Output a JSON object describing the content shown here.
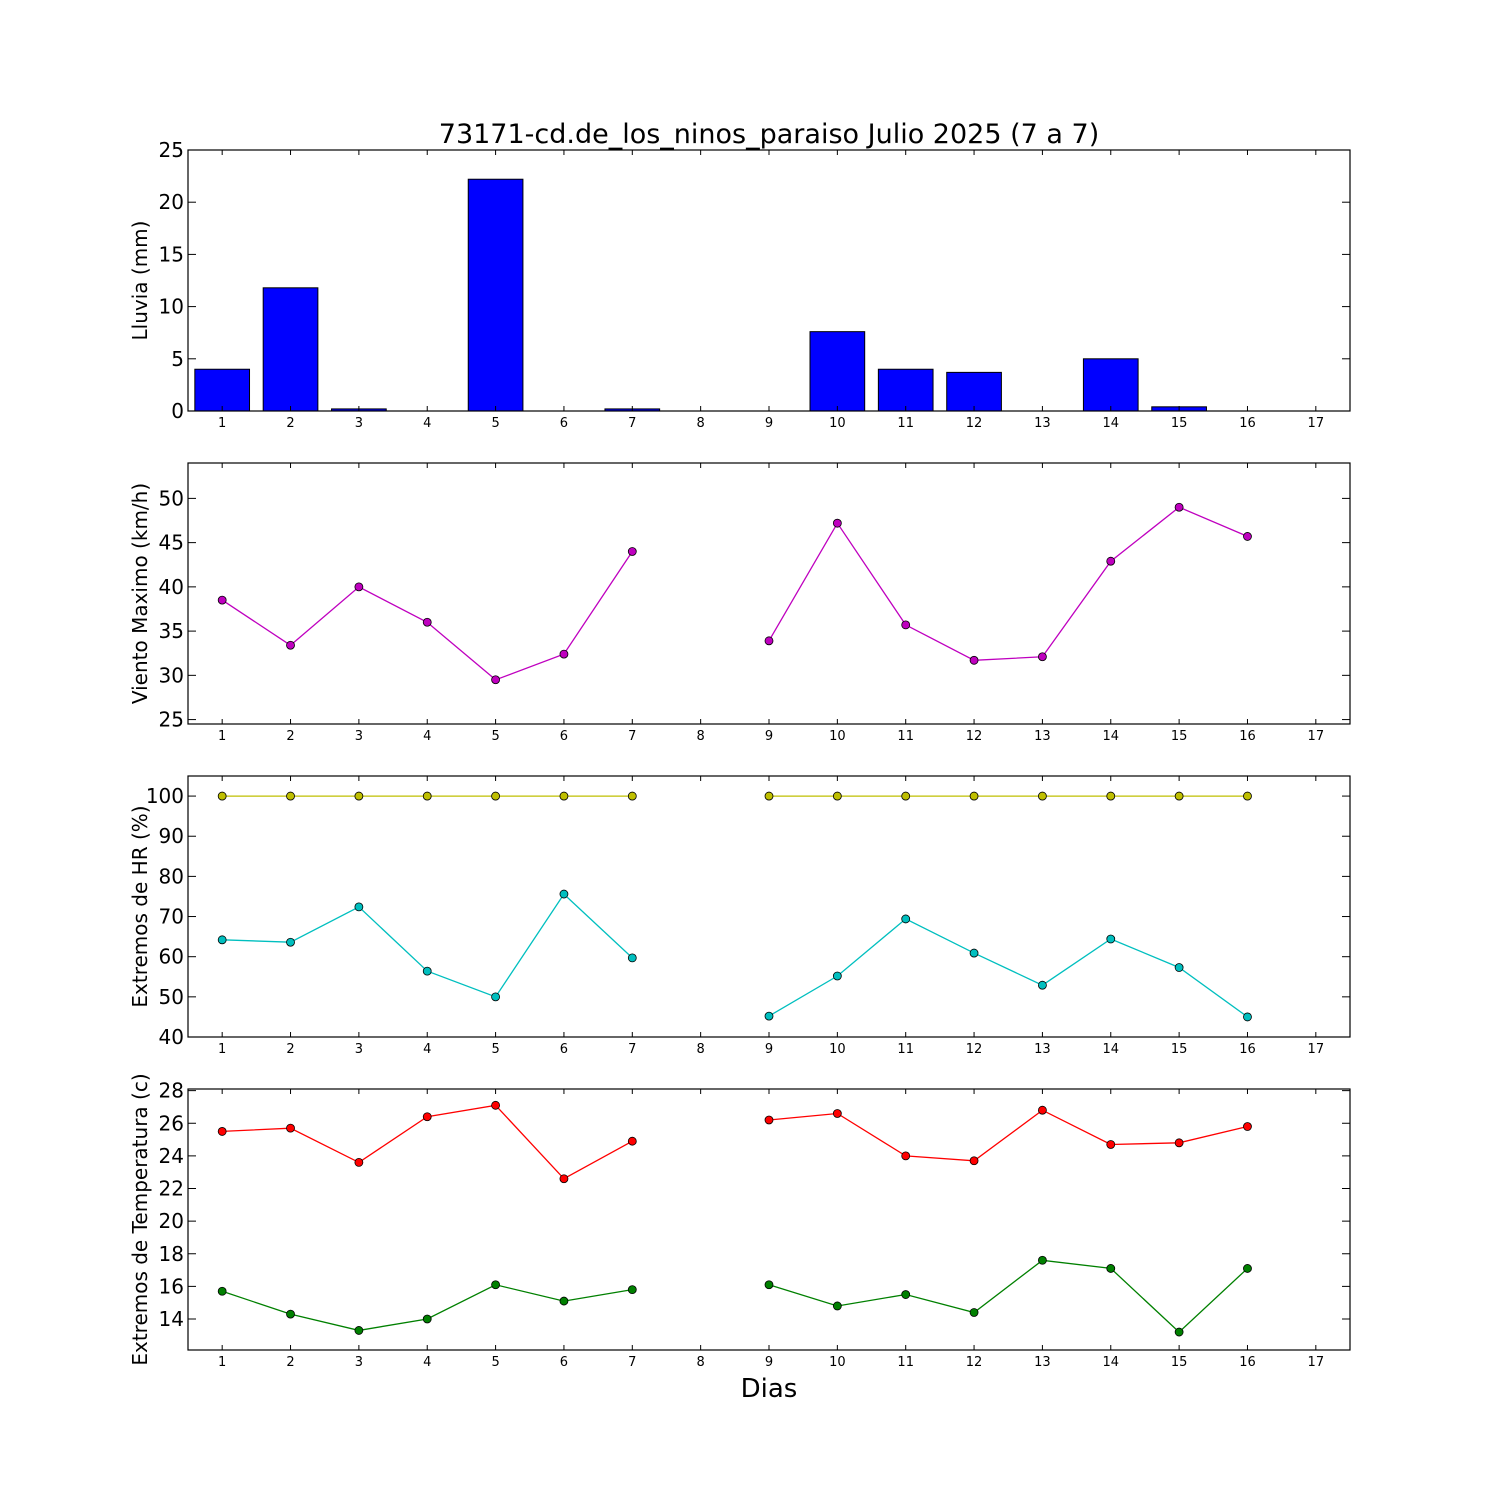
{
  "figure": {
    "title": "73171-cd.de_los_ninos_paraiso Julio 2025  (7 a 7)",
    "xlabel": "Dias"
  },
  "chart_data": [
    {
      "type": "bar",
      "ylabel": "Lluvia (mm)",
      "categories": [
        1,
        2,
        3,
        4,
        5,
        6,
        7,
        8,
        9,
        10,
        11,
        12,
        13,
        14,
        15,
        16,
        17
      ],
      "xlim": [
        0.5,
        17.5
      ],
      "ylim": [
        0,
        25
      ],
      "yticks": [
        0,
        5,
        10,
        15,
        20,
        25
      ],
      "grid": false,
      "series": [
        {
          "color": "#0000ff",
          "values": [
            4.0,
            11.8,
            0.2,
            0.0,
            22.2,
            0.0,
            0.2,
            null,
            0.0,
            7.6,
            4.0,
            3.7,
            0.0,
            5.0,
            0.4,
            0.0,
            null
          ]
        }
      ]
    },
    {
      "type": "line",
      "ylabel": "Viento Maximo (km/h)",
      "x": [
        1,
        2,
        3,
        4,
        5,
        6,
        7,
        8,
        9,
        10,
        11,
        12,
        13,
        14,
        15,
        16,
        17
      ],
      "xlim": [
        0.5,
        17.5
      ],
      "ylim": [
        24.5,
        54
      ],
      "yticks": [
        25,
        30,
        35,
        40,
        45,
        50
      ],
      "grid": false,
      "series": [
        {
          "color": "#bf00bf",
          "values": [
            38.5,
            33.4,
            40.0,
            36.0,
            29.5,
            32.4,
            44.0,
            null,
            33.9,
            47.2,
            35.7,
            31.7,
            32.1,
            42.9,
            49.0,
            45.7,
            null
          ]
        }
      ]
    },
    {
      "type": "line",
      "ylabel": "Extremos de HR (%)",
      "x": [
        1,
        2,
        3,
        4,
        5,
        6,
        7,
        8,
        9,
        10,
        11,
        12,
        13,
        14,
        15,
        16,
        17
      ],
      "xlim": [
        0.5,
        17.5
      ],
      "ylim": [
        40,
        105
      ],
      "yticks": [
        40,
        50,
        60,
        70,
        80,
        90,
        100
      ],
      "grid": false,
      "series": [
        {
          "color": "#bfbf00",
          "values": [
            100,
            100,
            100,
            100,
            100,
            100,
            100,
            null,
            100,
            100,
            100,
            100,
            100,
            100,
            100,
            100,
            null
          ]
        },
        {
          "color": "#00bfbf",
          "values": [
            64.2,
            63.6,
            72.4,
            56.4,
            50.0,
            75.6,
            59.7,
            null,
            45.2,
            55.2,
            69.4,
            60.9,
            52.9,
            64.4,
            57.3,
            45.0,
            null
          ]
        }
      ]
    },
    {
      "type": "line",
      "ylabel": "Extremos de Temperatura (c)",
      "x": [
        1,
        2,
        3,
        4,
        5,
        6,
        7,
        8,
        9,
        10,
        11,
        12,
        13,
        14,
        15,
        16,
        17
      ],
      "xlim": [
        0.5,
        17.5
      ],
      "ylim": [
        12.1,
        28.1
      ],
      "yticks": [
        14,
        16,
        18,
        20,
        22,
        24,
        26,
        28
      ],
      "grid": false,
      "series": [
        {
          "color": "#ff0000",
          "values": [
            25.5,
            25.7,
            23.6,
            26.4,
            27.1,
            22.6,
            24.9,
            null,
            26.2,
            26.6,
            24.0,
            23.7,
            26.8,
            24.7,
            24.8,
            25.8,
            null
          ]
        },
        {
          "color": "#008000",
          "values": [
            15.7,
            14.3,
            13.3,
            14.0,
            16.1,
            15.1,
            15.8,
            null,
            16.1,
            14.8,
            15.5,
            14.4,
            17.6,
            17.1,
            13.2,
            17.1,
            null
          ]
        }
      ]
    }
  ]
}
